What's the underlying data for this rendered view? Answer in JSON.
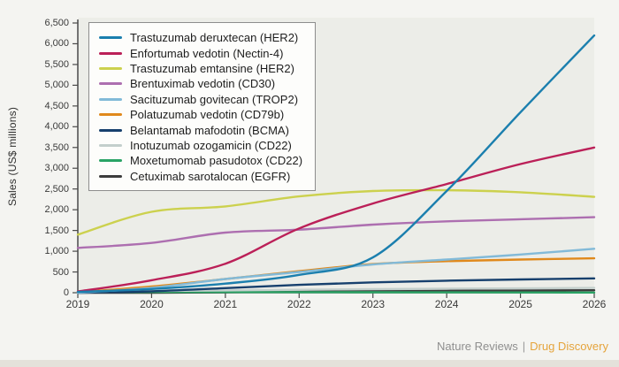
{
  "chart_data": {
    "type": "line",
    "title": "",
    "xlabel": "",
    "ylabel": "Sales (US$ millions)",
    "x": [
      2019,
      2020,
      2021,
      2022,
      2023,
      2024,
      2025,
      2026
    ],
    "x_tick_labels": [
      "2019",
      "2020",
      "2021",
      "2022",
      "2023",
      "2024",
      "2025",
      "2026"
    ],
    "ylim": [
      0,
      6500
    ],
    "y_tick_step": 500,
    "y_tick_labels": [
      "0",
      "500",
      "1,000",
      "1,500",
      "2,000",
      "2,500",
      "3,000",
      "3,500",
      "4,000",
      "4,500",
      "5,000",
      "5,500",
      "6,000",
      "6,500"
    ],
    "grid": false,
    "legend_position": "top-left-inside",
    "units": "US$ millions",
    "series": [
      {
        "name": "Trastuzumab deruxtecan (HER2)",
        "color": "#1b7fae",
        "values": [
          20,
          90,
          220,
          430,
          850,
          2450,
          4350,
          6200
        ]
      },
      {
        "name": "Enfortumab vedotin (Nectin-4)",
        "color": "#bb2058",
        "values": [
          30,
          300,
          700,
          1550,
          2150,
          2620,
          3100,
          3500
        ]
      },
      {
        "name": "Trastuzumab emtansine (HER2)",
        "color": "#ccd14e",
        "values": [
          1400,
          1950,
          2080,
          2320,
          2450,
          2470,
          2420,
          2310
        ]
      },
      {
        "name": "Brentuximab vedotin (CD30)",
        "color": "#ad6fb0",
        "values": [
          1080,
          1200,
          1450,
          1520,
          1640,
          1720,
          1770,
          1820
        ]
      },
      {
        "name": "Sacituzumab govitecan (TROP2)",
        "color": "#82bad8",
        "values": [
          0,
          120,
          330,
          500,
          680,
          800,
          920,
          1060
        ]
      },
      {
        "name": "Polatuzumab vedotin (CD79b)",
        "color": "#e0891c",
        "values": [
          10,
          150,
          330,
          520,
          690,
          760,
          800,
          830
        ]
      },
      {
        "name": "Belantamab mafodotin (BCMA)",
        "color": "#17406d",
        "values": [
          0,
          35,
          110,
          190,
          250,
          290,
          320,
          345
        ]
      },
      {
        "name": "Inotuzumab ozogamicin (CD22)",
        "color": "#c3cfcc",
        "values": [
          25,
          40,
          55,
          70,
          85,
          95,
          105,
          115
        ]
      },
      {
        "name": "Moxetumomab pasudotox (CD22)",
        "color": "#2aa365",
        "values": [
          12,
          18,
          15,
          12,
          10,
          8,
          6,
          5
        ]
      },
      {
        "name": "Cetuximab sarotalocan (EGFR)",
        "color": "#3c3c3c",
        "values": [
          0,
          0,
          10,
          25,
          40,
          50,
          55,
          60
        ]
      }
    ]
  },
  "footer": {
    "publisher": "Nature Reviews",
    "separator": "|",
    "journal": "Drug Discovery"
  },
  "theme": {
    "page_bg": "#f4f4f1",
    "plot_bg": "#eceded",
    "plot_bg_actual": "#ecede8",
    "axis_color": "#4a4a4a",
    "tick_text_color": "#3a3a3a",
    "legend_border": "#8d8d8d",
    "journal_color": "#e5a43c",
    "publisher_color": "#8f8f8f"
  }
}
